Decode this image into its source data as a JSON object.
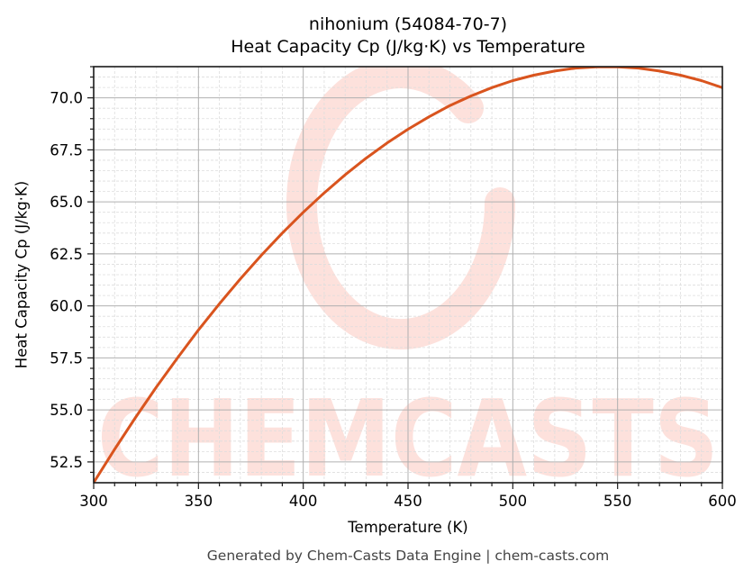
{
  "title_line1": "nihonium (54084-70-7)",
  "title_line2": "Heat Capacity Cp (J/kg·K) vs Temperature",
  "footer": "Generated by Chem-Casts Data Engine | chem-casts.com",
  "watermark": "CHEMCASTS",
  "colors": {
    "line": "#d9541e",
    "watermark": "#fde1dc",
    "grid_major": "#b0b0b0",
    "grid_minor": "#dddddd"
  },
  "chart_data": {
    "type": "line",
    "title": "nihonium (54084-70-7) Heat Capacity Cp (J/kg·K) vs Temperature",
    "xlabel": "Temperature (K)",
    "ylabel": "Heat Capacity Cp (J/kg·K)",
    "xlim": [
      300,
      600
    ],
    "ylim": [
      51.5,
      71.5
    ],
    "xticks": [
      300,
      350,
      400,
      450,
      500,
      550,
      600
    ],
    "xtick_labels": [
      "300",
      "350",
      "400",
      "450",
      "500",
      "550",
      "600"
    ],
    "yticks": [
      52.5,
      55.0,
      57.5,
      60.0,
      62.5,
      65.0,
      67.5,
      70.0
    ],
    "ytick_labels": [
      "52.5",
      "55.0",
      "57.5",
      "60.0",
      "62.5",
      "65.0",
      "67.5",
      "70.0"
    ],
    "grid": true,
    "legend": null,
    "series": [
      {
        "name": "Cp",
        "x": [
          300,
          310,
          320,
          330,
          340,
          350,
          360,
          370,
          380,
          390,
          400,
          410,
          420,
          430,
          440,
          450,
          460,
          470,
          480,
          490,
          500,
          510,
          520,
          530,
          540,
          550,
          560,
          570,
          580,
          590,
          600
        ],
        "y": [
          51.51,
          53.11,
          54.64,
          56.11,
          57.5,
          58.84,
          60.1,
          61.3,
          62.43,
          63.5,
          64.5,
          65.43,
          66.3,
          67.1,
          67.83,
          68.49,
          69.09,
          69.63,
          70.09,
          70.49,
          70.83,
          71.09,
          71.29,
          71.43,
          71.49,
          71.49,
          71.43,
          71.29,
          71.09,
          70.83,
          70.49
        ]
      }
    ]
  }
}
